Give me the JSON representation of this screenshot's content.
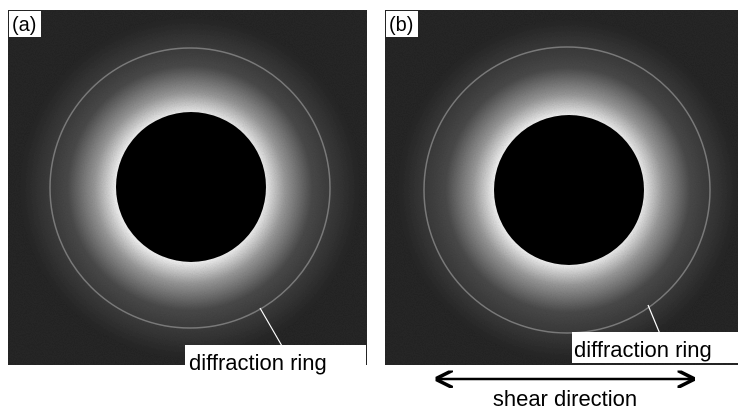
{
  "panels": [
    {
      "label": "(a)",
      "annotation": "diffraction ring"
    },
    {
      "label": "(b)",
      "annotation": "diffraction ring"
    }
  ],
  "arrow_label": "shear direction"
}
